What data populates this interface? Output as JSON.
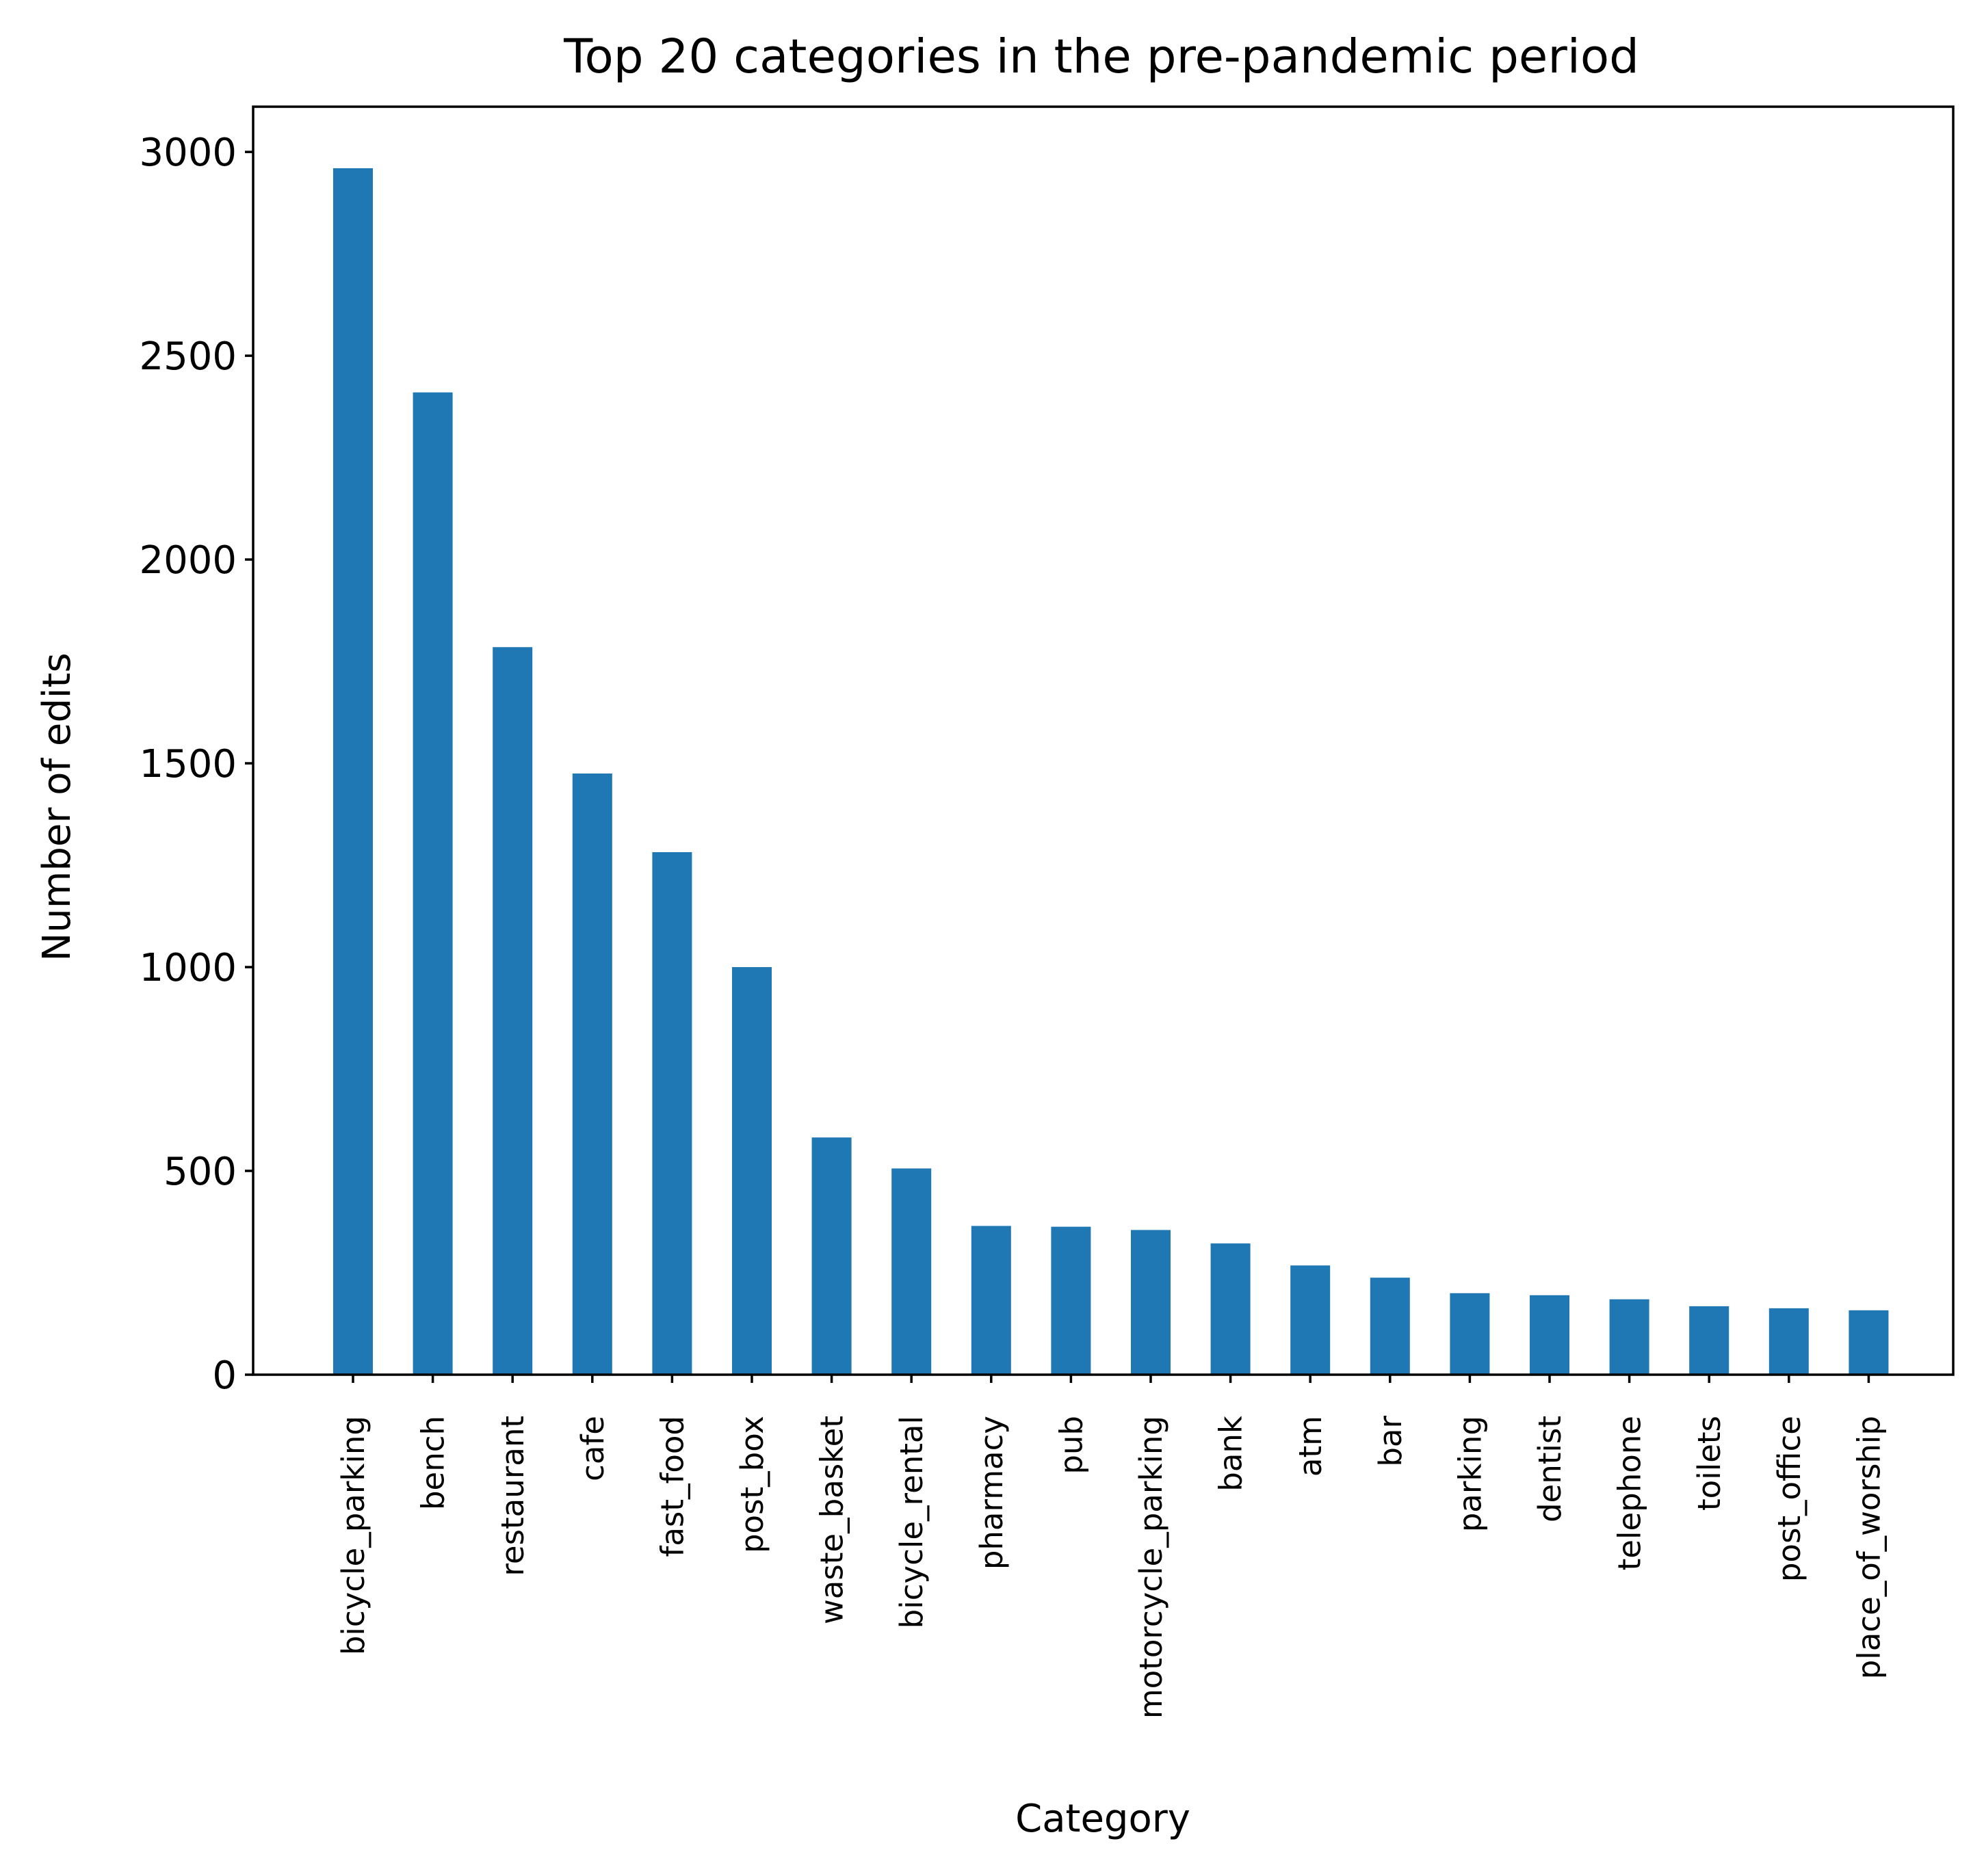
{
  "chart_data": {
    "type": "bar",
    "title": "Top 20 categories in the pre-pandemic period",
    "xlabel": "Category",
    "ylabel": "Number of edits",
    "categories": [
      "bicycle_parking",
      "bench",
      "restaurant",
      "cafe",
      "fast_food",
      "post_box",
      "waste_basket",
      "bicycle_rental",
      "pharmacy",
      "pub",
      "motorcycle_parking",
      "bank",
      "atm",
      "bar",
      "parking",
      "dentist",
      "telephone",
      "toilets",
      "post_office",
      "place_of_worship"
    ],
    "values": [
      2960,
      2410,
      1785,
      1475,
      1282,
      1000,
      582,
      506,
      365,
      363,
      355,
      322,
      268,
      238,
      200,
      195,
      185,
      168,
      163,
      158
    ],
    "yticks": [
      0,
      500,
      1000,
      1500,
      2000,
      2500,
      3000
    ],
    "ylim": [
      0,
      3111
    ],
    "bar_color": "#1f77b4",
    "grid": false,
    "legend": "none"
  }
}
